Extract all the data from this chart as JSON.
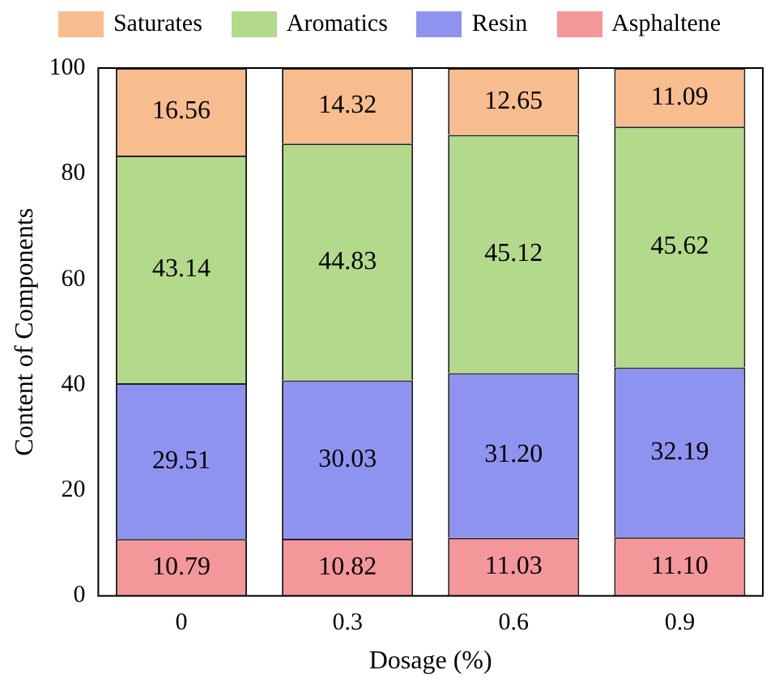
{
  "chart_data": {
    "type": "bar",
    "stacked": true,
    "xlabel": "Dosage (%)",
    "ylabel": "Content of Components",
    "categories": [
      "0",
      "0.3",
      "0.6",
      "0.9"
    ],
    "series": [
      {
        "name": "Asphaltene",
        "color": "#f4979b",
        "values": [
          10.79,
          10.82,
          11.03,
          11.1
        ],
        "value_labels": [
          "10.79",
          "10.82",
          "11.03",
          "11.10"
        ]
      },
      {
        "name": "Resin",
        "color": "#8f93f0",
        "values": [
          29.51,
          30.03,
          31.2,
          32.19
        ],
        "value_labels": [
          "29.51",
          "30.03",
          "31.20",
          "32.19"
        ]
      },
      {
        "name": "Aromatics",
        "color": "#b3d98a",
        "values": [
          43.14,
          44.83,
          45.12,
          45.62
        ],
        "value_labels": [
          "43.14",
          "44.83",
          "45.12",
          "45.62"
        ]
      },
      {
        "name": "Saturates",
        "color": "#f8bd8e",
        "values": [
          16.56,
          14.32,
          12.65,
          11.09
        ],
        "value_labels": [
          "16.56",
          "14.32",
          "12.65",
          "11.09"
        ]
      }
    ],
    "ylim": [
      0,
      100
    ],
    "yticks": [
      0,
      20,
      40,
      60,
      80,
      100
    ],
    "grid": false,
    "legend": "top"
  }
}
